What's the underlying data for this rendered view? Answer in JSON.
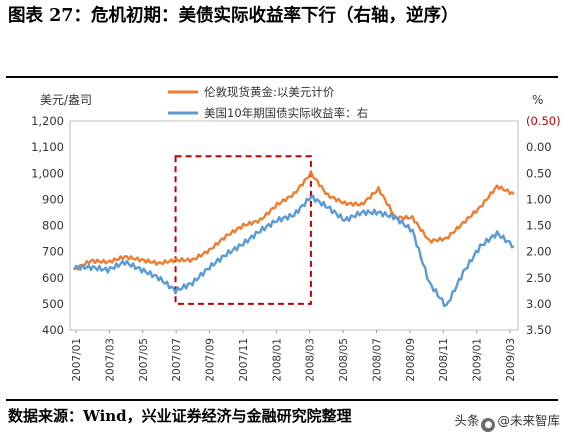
{
  "title": "图表 27：危机初期：美债实际收益率下行（右轴，逆序）",
  "source": "数据来源：Wind，兴业证券经济与金融研究院整理",
  "watermark": {
    "prefix": "头条",
    "handle": "@未来智库"
  },
  "colors": {
    "gold": "#ED7D31",
    "yield": "#5B9BD5",
    "box": "#C00000",
    "axis_right": "#C00000"
  },
  "chart_data": {
    "type": "line",
    "title": "",
    "left_axis": {
      "label": "美元/盎司",
      "ylim": [
        400,
        1200
      ],
      "ticks": [
        "400",
        "500",
        "600",
        "700",
        "800",
        "900",
        "1,000",
        "1,100",
        "1,200"
      ]
    },
    "right_axis": {
      "label": "%",
      "inverted": true,
      "ylim": [
        -0.5,
        3.5
      ],
      "ticks": [
        "(0.50)",
        "0.00",
        "0.50",
        "1.00",
        "1.50",
        "2.00",
        "2.50",
        "3.00",
        "3.50"
      ]
    },
    "x_ticks": [
      "2007/01",
      "2007/03",
      "2007/05",
      "2007/07",
      "2007/09",
      "2007/11",
      "2008/01",
      "2008/03",
      "2008/05",
      "2008/07",
      "2008/09",
      "2008/11",
      "2009/01",
      "2009/03"
    ],
    "legend": [
      "伦敦现货黄金:以美元计价",
      "美国10年期国债实际收益率：右"
    ],
    "highlight_box": {
      "x_start": "2007/07",
      "x_end": "2008/03",
      "y_range": [
        500,
        1065
      ]
    },
    "series": [
      {
        "name": "伦敦现货黄金:以美元计价",
        "axis": "left",
        "color": "#ED7D31",
        "x": [
          "2007/01",
          "2007/02",
          "2007/03",
          "2007/04",
          "2007/05",
          "2007/06",
          "2007/07",
          "2007/08",
          "2007/09",
          "2007/10",
          "2007/11",
          "2007/12",
          "2008/01",
          "2008/02",
          "2008/03",
          "2008/04",
          "2008/05",
          "2008/06",
          "2008/07",
          "2008/08",
          "2008/09",
          "2008/10",
          "2008/11",
          "2008/12",
          "2009/01",
          "2009/02",
          "2009/03"
        ],
        "values": [
          630,
          665,
          660,
          680,
          668,
          655,
          668,
          668,
          705,
          760,
          800,
          820,
          880,
          920,
          1000,
          915,
          885,
          880,
          940,
          830,
          830,
          740,
          750,
          810,
          870,
          950,
          920
        ]
      },
      {
        "name": "美国10年期国债实际收益率：右",
        "axis": "right",
        "color": "#5B9BD5",
        "x": [
          "2007/01",
          "2007/02",
          "2007/03",
          "2007/04",
          "2007/05",
          "2007/06",
          "2007/07",
          "2007/08",
          "2007/09",
          "2007/10",
          "2007/11",
          "2007/12",
          "2008/01",
          "2008/02",
          "2008/03",
          "2008/04",
          "2008/05",
          "2008/06",
          "2008/07",
          "2008/08",
          "2008/09",
          "2008/10",
          "2008/11",
          "2008/12",
          "2009/01",
          "2009/02",
          "2009/03"
        ],
        "values": [
          2.3,
          2.3,
          2.35,
          2.2,
          2.35,
          2.5,
          2.75,
          2.6,
          2.3,
          2.05,
          1.85,
          1.6,
          1.4,
          1.3,
          0.95,
          1.15,
          1.4,
          1.25,
          1.25,
          1.35,
          1.6,
          2.6,
          3.05,
          2.4,
          1.9,
          1.65,
          1.9
        ]
      }
    ]
  }
}
